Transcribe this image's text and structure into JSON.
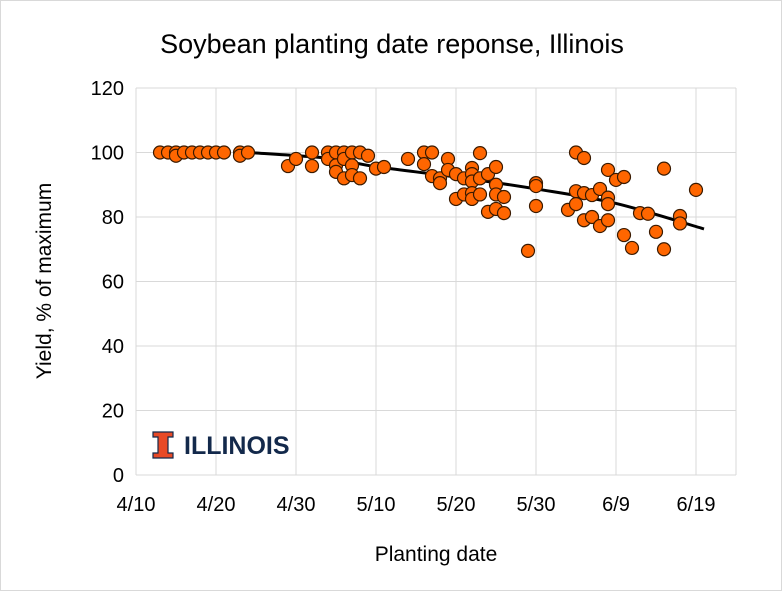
{
  "chart_data": {
    "type": "scatter",
    "title": "Soybean planting date reponse, Illinois",
    "xlabel": "Planting date",
    "ylabel": "Yield, % of maximum",
    "xlim": [
      "4/10",
      "6/24"
    ],
    "ylim": [
      0,
      120
    ],
    "x_ticks": [
      "4/10",
      "4/20",
      "4/30",
      "5/10",
      "5/20",
      "5/30",
      "6/9",
      "6/19"
    ],
    "y_ticks": [
      0,
      20,
      40,
      60,
      80,
      100,
      120
    ],
    "grid": true,
    "marker_color": "#FF6600",
    "marker_edge_color": "#3a1a00",
    "trend_color": "#000000",
    "points": [
      [
        "4/13",
        100
      ],
      [
        "4/14",
        100
      ],
      [
        "4/15",
        100
      ],
      [
        "4/15",
        99
      ],
      [
        "4/16",
        100
      ],
      [
        "4/17",
        100
      ],
      [
        "4/18",
        100
      ],
      [
        "4/19",
        100
      ],
      [
        "4/20",
        100
      ],
      [
        "4/21",
        100
      ],
      [
        "4/23",
        100
      ],
      [
        "4/23",
        99
      ],
      [
        "4/24",
        100
      ],
      [
        "4/29",
        95.8
      ],
      [
        "4/30",
        98
      ],
      [
        "5/2",
        95.8
      ],
      [
        "5/2",
        100
      ],
      [
        "5/4",
        100
      ],
      [
        "5/4",
        98
      ],
      [
        "5/5",
        100
      ],
      [
        "5/5",
        96
      ],
      [
        "5/5",
        94
      ],
      [
        "5/6",
        100
      ],
      [
        "5/6",
        98
      ],
      [
        "5/6",
        92
      ],
      [
        "5/7",
        100
      ],
      [
        "5/7",
        96
      ],
      [
        "5/7",
        93
      ],
      [
        "5/8",
        100
      ],
      [
        "5/8",
        92
      ],
      [
        "5/9",
        99
      ],
      [
        "5/10",
        95
      ],
      [
        "5/11",
        95.5
      ],
      [
        "5/14",
        98
      ],
      [
        "5/16",
        100
      ],
      [
        "5/17",
        100
      ],
      [
        "5/16",
        96.4
      ],
      [
        "5/19",
        98
      ],
      [
        "5/17",
        92.7
      ],
      [
        "5/18",
        92
      ],
      [
        "5/18",
        90.5
      ],
      [
        "5/19",
        94.6
      ],
      [
        "5/20",
        93.3
      ],
      [
        "5/20",
        85.6
      ],
      [
        "5/21",
        92
      ],
      [
        "5/21",
        87
      ],
      [
        "5/22",
        95.2
      ],
      [
        "5/22",
        93.3
      ],
      [
        "5/22",
        91
      ],
      [
        "5/22",
        87.4
      ],
      [
        "5/22",
        85.6
      ],
      [
        "5/23",
        99.8
      ],
      [
        "5/23",
        92
      ],
      [
        "5/23",
        87
      ],
      [
        "5/24",
        93.3
      ],
      [
        "5/25",
        95.5
      ],
      [
        "5/25",
        90
      ],
      [
        "5/25",
        87
      ],
      [
        "5/24",
        81.6
      ],
      [
        "5/25",
        82.5
      ],
      [
        "5/26",
        86.2
      ],
      [
        "5/26",
        81.2
      ],
      [
        "5/29",
        69.5
      ],
      [
        "5/30",
        90.5
      ],
      [
        "5/30",
        89.6
      ],
      [
        "5/30",
        83.4
      ],
      [
        "6/3",
        82.2
      ],
      [
        "6/4",
        100
      ],
      [
        "6/4",
        88
      ],
      [
        "6/4",
        84
      ],
      [
        "6/5",
        98.3
      ],
      [
        "6/5",
        87.4
      ],
      [
        "6/5",
        79
      ],
      [
        "6/6",
        86.8
      ],
      [
        "6/6",
        80
      ],
      [
        "6/7",
        88.7
      ],
      [
        "6/7",
        77.2
      ],
      [
        "6/8",
        94.6
      ],
      [
        "6/8",
        86
      ],
      [
        "6/8",
        84
      ],
      [
        "6/8",
        79
      ],
      [
        "6/9",
        91.5
      ],
      [
        "6/10",
        92.4
      ],
      [
        "6/10",
        74.4
      ],
      [
        "6/11",
        70.4
      ],
      [
        "6/12",
        81.2
      ],
      [
        "6/13",
        81
      ],
      [
        "6/14",
        75.4
      ],
      [
        "6/15",
        95
      ],
      [
        "6/15",
        70
      ],
      [
        "6/17",
        80.3
      ],
      [
        "6/17",
        78
      ],
      [
        "6/19",
        88.4
      ]
    ],
    "trendline": [
      [
        "4/24",
        100
      ],
      [
        "5/4",
        98.2
      ],
      [
        "5/10",
        95.6
      ],
      [
        "5/20",
        92.4
      ],
      [
        "5/30",
        88.7
      ],
      [
        "6/9",
        84.2
      ],
      [
        "6/20",
        76.3
      ]
    ]
  },
  "logo": {
    "text": "ILLINOIS",
    "color": "#13294B",
    "mark_color": "#E84A27"
  }
}
